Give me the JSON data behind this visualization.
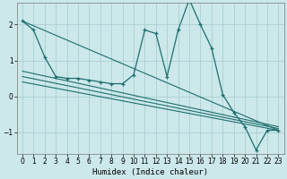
{
  "xlabel": "Humidex (Indice chaleur)",
  "ylabel": "",
  "bg_color": "#cce8ea",
  "grid_color": "#aacfd2",
  "line_color": "#1e6e6e",
  "xlim": [
    -0.5,
    23.5
  ],
  "ylim": [
    -1.6,
    2.6
  ],
  "xticks": [
    0,
    1,
    2,
    3,
    4,
    5,
    6,
    7,
    8,
    9,
    10,
    11,
    12,
    13,
    14,
    15,
    16,
    17,
    18,
    19,
    20,
    21,
    22,
    23
  ],
  "yticks": [
    -1,
    0,
    1,
    2
  ],
  "main_series": {
    "x": [
      0,
      1,
      2,
      3,
      4,
      5,
      6,
      7,
      8,
      9,
      10,
      11,
      12,
      13,
      14,
      15,
      16,
      17,
      18,
      19,
      20,
      21,
      22,
      23
    ],
    "y": [
      2.1,
      1.85,
      1.1,
      0.55,
      0.5,
      0.5,
      0.45,
      0.4,
      0.35,
      0.35,
      0.6,
      1.85,
      1.75,
      0.55,
      1.85,
      2.7,
      2.0,
      1.35,
      0.05,
      -0.45,
      -0.85,
      -1.5,
      -0.95,
      -0.95
    ]
  },
  "trend_lines": [
    {
      "x": [
        0,
        23
      ],
      "y": [
        2.1,
        -0.95
      ]
    },
    {
      "x": [
        0,
        23
      ],
      "y": [
        0.7,
        -0.85
      ]
    },
    {
      "x": [
        0,
        23
      ],
      "y": [
        0.55,
        -0.9
      ]
    },
    {
      "x": [
        0,
        23
      ],
      "y": [
        0.4,
        -0.95
      ]
    }
  ]
}
